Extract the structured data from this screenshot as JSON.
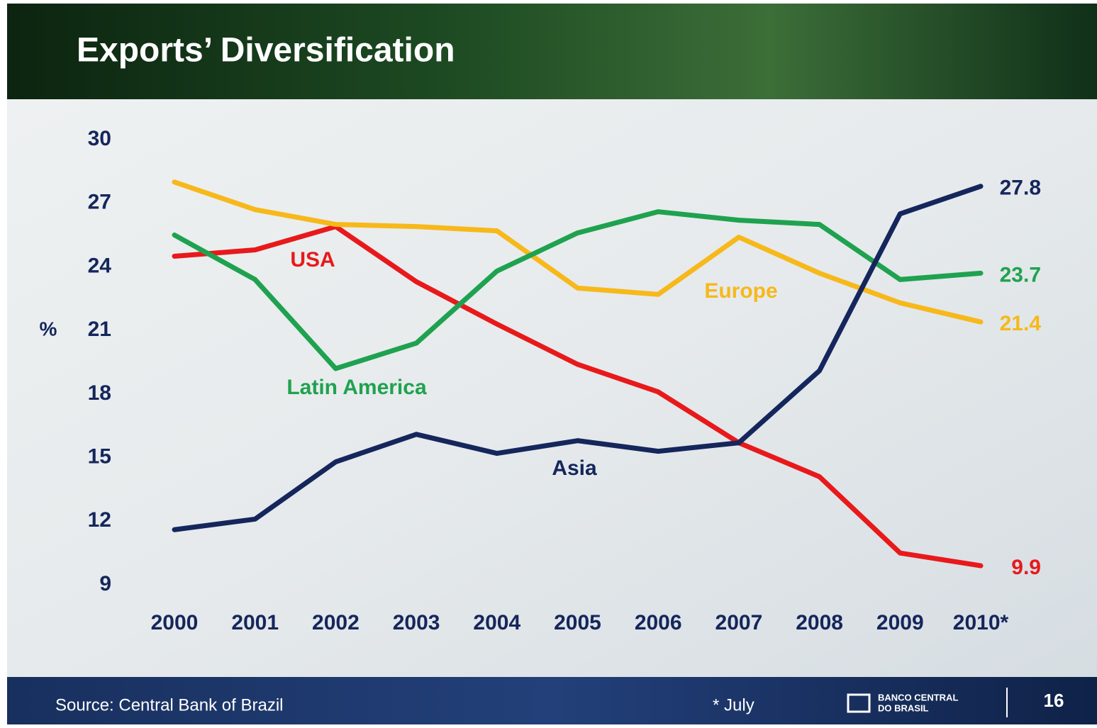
{
  "chart_data": {
    "type": "line",
    "title": "Exports’ Diversification",
    "y_label": "%",
    "categories": [
      "2000",
      "2001",
      "2002",
      "2003",
      "2004",
      "2005",
      "2006",
      "2007",
      "2008",
      "2009",
      "2010*"
    ],
    "series": [
      {
        "name": "USA",
        "color": "#e8191b",
        "values": [
          24.5,
          24.8,
          25.9,
          23.3,
          21.3,
          19.4,
          18.1,
          15.7,
          14.1,
          10.5,
          9.9
        ]
      },
      {
        "name": "Europe",
        "color": "#f7b81a",
        "values": [
          28.0,
          26.7,
          26.0,
          25.9,
          25.7,
          23.0,
          22.7,
          25.4,
          23.7,
          22.3,
          21.4
        ]
      },
      {
        "name": "Latin America",
        "color": "#1fa24f",
        "values": [
          25.5,
          23.4,
          19.2,
          20.4,
          23.8,
          25.6,
          26.6,
          26.2,
          26.0,
          23.4,
          23.7
        ]
      },
      {
        "name": "Asia",
        "color": "#15265c",
        "values": [
          11.6,
          12.1,
          14.8,
          16.1,
          15.2,
          15.8,
          15.3,
          15.7,
          19.1,
          26.5,
          27.8
        ]
      }
    ],
    "ylim": [
      9,
      30
    ],
    "yticks": [
      9,
      12,
      15,
      18,
      21,
      24,
      27,
      30
    ],
    "grid": false
  },
  "footer": {
    "source": "Source: Central Bank of Brazil",
    "note": "* July",
    "logo": [
      "BANCO CENTRAL",
      "DO BRASIL"
    ],
    "page": "16"
  }
}
